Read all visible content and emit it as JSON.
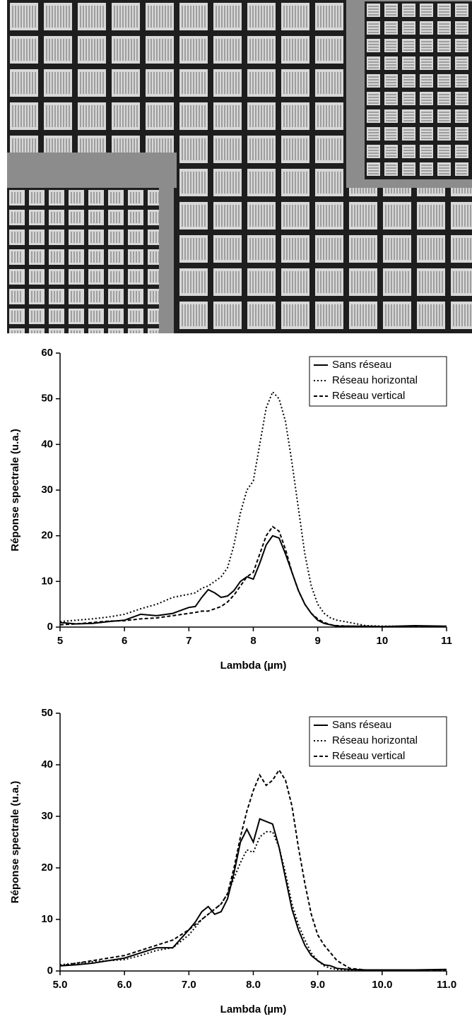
{
  "chart_data": [
    {
      "type": "line",
      "x_label": "Lambda (µm)",
      "y_label": "Réponse spectrale (u.a.)",
      "x": [
        5,
        5.25,
        5.5,
        5.75,
        6,
        6.25,
        6.5,
        6.75,
        7,
        7.1,
        7.2,
        7.3,
        7.4,
        7.5,
        7.6,
        7.7,
        7.8,
        7.9,
        8.0,
        8.1,
        8.2,
        8.3,
        8.4,
        8.5,
        8.6,
        8.7,
        8.8,
        8.9,
        9.0,
        9.1,
        9.2,
        9.3,
        9.5,
        9.75,
        10,
        10.5,
        11
      ],
      "series": [
        {
          "name": "Sans réseau",
          "color": "#000000",
          "line_style": "solid",
          "values": [
            1,
            0.7,
            0.8,
            1.2,
            1.5,
            2.8,
            2.5,
            3,
            4.3,
            4.5,
            6.5,
            8.2,
            7.5,
            6.5,
            6.8,
            8,
            10,
            11,
            10.5,
            14,
            18,
            20,
            19.5,
            16,
            12,
            8,
            5,
            3,
            1.5,
            0.8,
            0.5,
            0.2,
            0.2,
            0.2,
            0.1,
            0.3,
            0.2
          ]
        },
        {
          "name": "Réseau horizontal",
          "color": "#000000",
          "line_style": "dotted",
          "values": [
            1.2,
            1.5,
            1.8,
            2.2,
            2.8,
            4,
            5,
            6.5,
            7.2,
            7.5,
            8.5,
            9,
            10,
            11,
            13,
            18,
            25,
            30,
            32,
            40,
            48,
            51.5,
            50,
            45,
            36,
            26,
            16,
            9,
            5,
            3,
            2,
            1.5,
            1,
            0.3,
            0.2,
            0.2,
            0.1
          ]
        },
        {
          "name": "Réseau vertical",
          "color": "#000000",
          "line_style": "dashed",
          "values": [
            0.5,
            0.7,
            1,
            1.3,
            1.4,
            1.8,
            2,
            2.5,
            3,
            3.2,
            3.5,
            3.5,
            4,
            4.5,
            5.5,
            7,
            9,
            11,
            12,
            16,
            20,
            22,
            21,
            17,
            12,
            8,
            5,
            3,
            1.8,
            1,
            0.5,
            0.3,
            0.2,
            0.1,
            0.1,
            0.1,
            0.1
          ]
        }
      ],
      "xlim": [
        5,
        11
      ],
      "xticks": [
        5,
        6,
        7,
        8,
        9,
        10,
        11
      ],
      "ylim": [
        0,
        60
      ],
      "yticks": [
        0,
        10,
        20,
        30,
        40,
        50,
        60
      ],
      "legend": "upper right"
    },
    {
      "type": "line",
      "x_label": "Lambda (µm)",
      "y_label": "Réponse spectrale (u.a.)",
      "x": [
        5,
        5.25,
        5.5,
        5.75,
        6,
        6.25,
        6.5,
        6.75,
        7,
        7.1,
        7.2,
        7.3,
        7.4,
        7.5,
        7.6,
        7.7,
        7.8,
        7.9,
        8.0,
        8.1,
        8.2,
        8.3,
        8.4,
        8.5,
        8.6,
        8.7,
        8.8,
        8.9,
        9.0,
        9.1,
        9.2,
        9.3,
        9.5,
        9.75,
        10,
        10.5,
        11
      ],
      "series": [
        {
          "name": "Sans réseau",
          "color": "#000000",
          "line_style": "solid",
          "values": [
            1,
            1.2,
            1.5,
            2,
            2.5,
            3.5,
            4.5,
            4.5,
            8,
            9.5,
            11.5,
            12.5,
            11,
            11.5,
            14,
            19,
            25,
            27.5,
            25,
            29.5,
            29,
            28.5,
            24,
            18,
            12,
            8,
            5,
            3,
            2,
            1.2,
            1,
            0.5,
            0.3,
            0.2,
            0.2,
            0.2,
            0.3
          ]
        },
        {
          "name": "Réseau horizontal",
          "color": "#000000",
          "line_style": "dotted",
          "values": [
            1.2,
            1.5,
            1.8,
            2,
            2.2,
            3,
            4,
            4.5,
            7,
            8.5,
            10,
            11,
            12,
            13,
            15,
            18,
            21,
            23.5,
            23,
            26,
            27,
            27,
            24,
            19,
            13,
            9,
            6,
            3.5,
            2,
            1,
            0.5,
            0.3,
            0.2,
            0.1,
            0.1,
            0.1,
            0.1
          ]
        },
        {
          "name": "Réseau vertical",
          "color": "#000000",
          "line_style": "dashed",
          "values": [
            1,
            1.5,
            2,
            2.5,
            3,
            4,
            5,
            6,
            8,
            9,
            10,
            11,
            12,
            13,
            15,
            20,
            26,
            31,
            35,
            38,
            36,
            37,
            39,
            37,
            32,
            24,
            17,
            11,
            7,
            5,
            3.5,
            2,
            0.5,
            0.2,
            0.1,
            0.1,
            0.1
          ]
        }
      ],
      "xlim": [
        5,
        11
      ],
      "xticks": [
        {
          "value": 5,
          "label": "5.0"
        },
        {
          "value": 6,
          "label": "6.0"
        },
        {
          "value": 7,
          "label": "7.0"
        },
        {
          "value": 8,
          "label": "8.0"
        },
        {
          "value": 9,
          "label": "9.0"
        },
        {
          "value": 10,
          "label": "10.0"
        },
        {
          "value": 11,
          "label": "11.0"
        }
      ],
      "ylim": [
        0,
        50
      ],
      "yticks": [
        0,
        10,
        20,
        30,
        40,
        50
      ],
      "legend": "upper right"
    }
  ]
}
